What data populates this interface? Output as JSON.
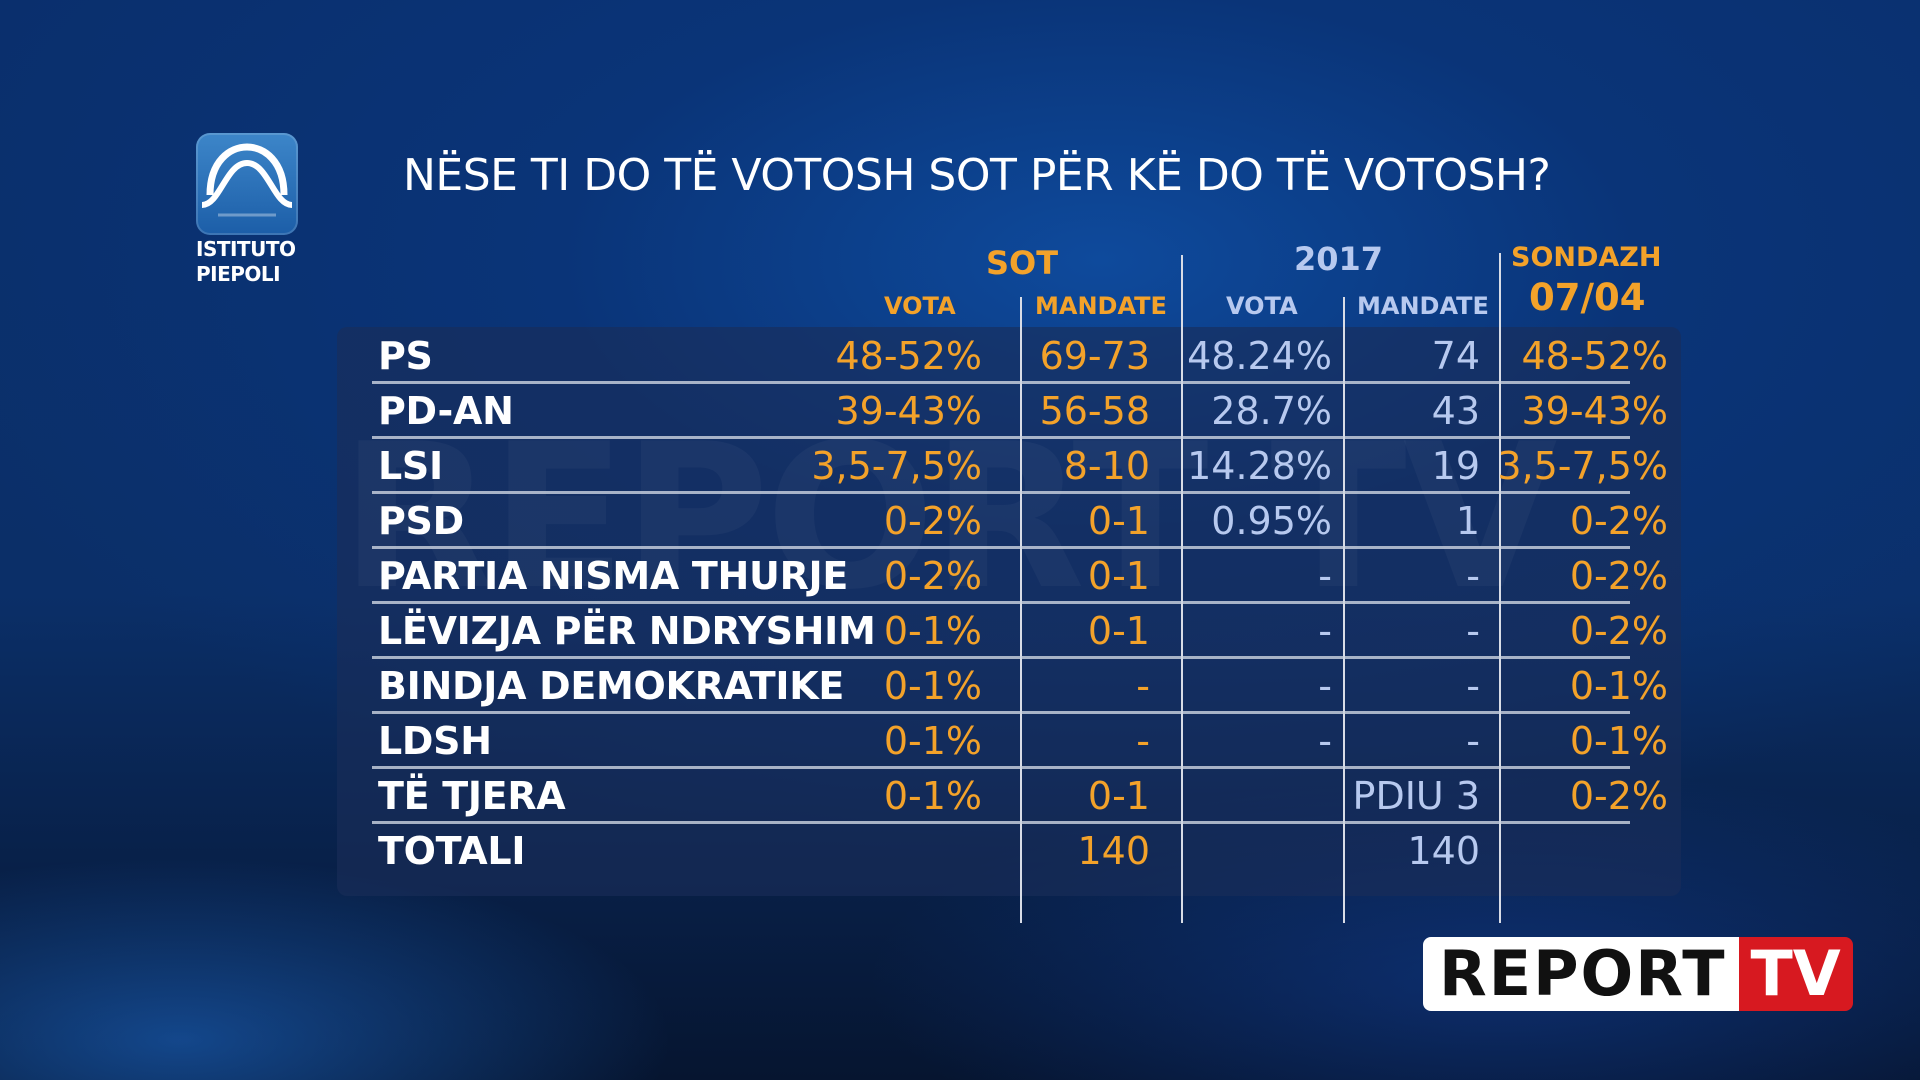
{
  "logo": {
    "line1": "ISTITUTO",
    "line2": "PIEPOLI"
  },
  "title": "NËSE TI DO TË VOTOSH SOT PËR KË DO TË VOTOSH?",
  "headers": {
    "group_sot": "SOT",
    "group_2017": "2017",
    "group_sondazh": "SONDAZH",
    "sondazh_date": "07/04",
    "vota_sot": "VOTA",
    "mandate_sot": "MANDATE",
    "vota_2017": "VOTA",
    "mandate_2017": "MANDATE"
  },
  "watermark": "REPORT TV",
  "rows": [
    {
      "party": "PS",
      "sot_vota": "48-52%",
      "sot_mandate": "69-73",
      "y2017_vota": "48.24%",
      "y2017_mandate": "74",
      "sondazh": "48-52%"
    },
    {
      "party": "PD-AN",
      "sot_vota": "39-43%",
      "sot_mandate": "56-58",
      "y2017_vota": "28.7%",
      "y2017_mandate": "43",
      "sondazh": "39-43%"
    },
    {
      "party": "LSI",
      "sot_vota": "3,5-7,5%",
      "sot_mandate": "8-10",
      "y2017_vota": "14.28%",
      "y2017_mandate": "19",
      "sondazh": "3,5-7,5%"
    },
    {
      "party": "PSD",
      "sot_vota": "0-2%",
      "sot_mandate": "0-1",
      "y2017_vota": "0.95%",
      "y2017_mandate": "1",
      "sondazh": "0-2%"
    },
    {
      "party": "PARTIA NISMA THURJE",
      "sot_vota": "0-2%",
      "sot_mandate": "0-1",
      "y2017_vota": "-",
      "y2017_mandate": "-",
      "sondazh": "0-2%"
    },
    {
      "party": "LËVIZJA PËR NDRYSHIM",
      "sot_vota": "0-1%",
      "sot_mandate": "0-1",
      "y2017_vota": "-",
      "y2017_mandate": "-",
      "sondazh": "0-2%"
    },
    {
      "party": "BINDJA DEMOKRATIKE",
      "sot_vota": "0-1%",
      "sot_mandate": "-",
      "y2017_vota": "-",
      "y2017_mandate": "-",
      "sondazh": "0-1%"
    },
    {
      "party": "LDSH",
      "sot_vota": "0-1%",
      "sot_mandate": "-",
      "y2017_vota": "-",
      "y2017_mandate": "-",
      "sondazh": "0-1%"
    },
    {
      "party": "TË TJERA",
      "sot_vota": "0-1%",
      "sot_mandate": "0-1",
      "y2017_vota": "",
      "y2017_mandate": "PDIU 3",
      "sondazh": "0-2%"
    },
    {
      "party": "TOTALI",
      "sot_vota": "",
      "sot_mandate": "140",
      "y2017_vota": "",
      "y2017_mandate": "140",
      "sondazh": ""
    }
  ],
  "brand": {
    "left": "REPORT",
    "right": "TV"
  },
  "colors": {
    "orange": "#f3a22a",
    "light_blue": "#b7c9ef",
    "brand_red": "#d71920"
  }
}
